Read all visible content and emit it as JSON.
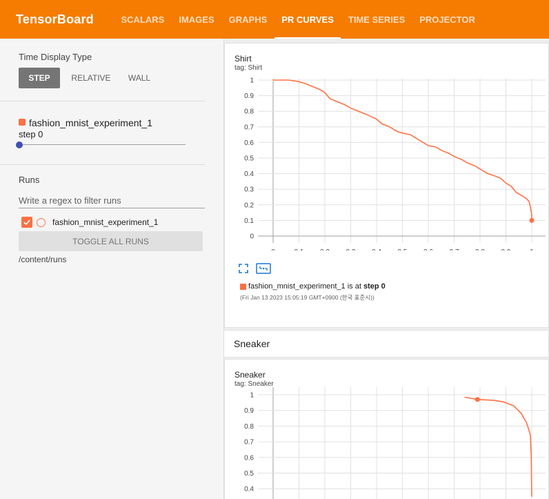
{
  "app": {
    "title": "TensorBoard"
  },
  "tabs": [
    {
      "label": "SCALARS",
      "active": false
    },
    {
      "label": "IMAGES",
      "active": false
    },
    {
      "label": "GRAPHS",
      "active": false
    },
    {
      "label": "PR CURVES",
      "active": true
    },
    {
      "label": "TIME SERIES",
      "active": false
    },
    {
      "label": "PROJECTOR",
      "active": false
    }
  ],
  "sidebar": {
    "time_display_title": "Time Display Type",
    "modes": [
      "STEP",
      "RELATIVE",
      "WALL"
    ],
    "selected_mode": "STEP",
    "run_title": "fashion_mnist_experiment_1",
    "step_label": "step 0",
    "step_value": 0,
    "runs_title": "Runs",
    "filter_placeholder": "Write a regex to filter runs",
    "runs": [
      {
        "name": "fashion_mnist_experiment_1",
        "checked": true
      }
    ],
    "toggle_all_label": "TOGGLE ALL RUNS",
    "logdir": "/content/runs"
  },
  "colors": {
    "accent": "#f57c00",
    "run": "#ff7043",
    "slider": "#3f51b5"
  },
  "main": {
    "cards": [
      {
        "title": "Shirt",
        "tag": "tag: Shirt",
        "legend_run": "fashion_mnist_experiment_1",
        "legend_mid": " is at ",
        "legend_step": "step 0",
        "legend_time": "(Fri Jan 13 2023 15:05:19 GMT+0900 (한국 표준시))"
      },
      {
        "title": "Sneaker",
        "tag": "tag: Sneaker"
      }
    ],
    "group_header": "Sneaker"
  },
  "chart_data": [
    {
      "type": "line",
      "title": "Shirt",
      "xlabel": "",
      "ylabel": "",
      "xlim": [
        0,
        1
      ],
      "ylim": [
        0,
        1
      ],
      "x_ticks": [
        "0",
        "0.1",
        "0.2",
        "0.3",
        "0.4",
        "0.5",
        "0.6",
        "0.7",
        "0.8",
        "0.9",
        "1"
      ],
      "y_ticks": [
        "0",
        "0.1",
        "0.2",
        "0.3",
        "0.4",
        "0.5",
        "0.6",
        "0.7",
        "0.8",
        "0.9",
        "1"
      ],
      "grid": true,
      "series": [
        {
          "name": "fashion_mnist_experiment_1",
          "x": [
            0,
            0.03,
            0.06,
            0.1,
            0.12,
            0.15,
            0.18,
            0.2,
            0.22,
            0.25,
            0.28,
            0.3,
            0.33,
            0.36,
            0.4,
            0.42,
            0.45,
            0.48,
            0.5,
            0.53,
            0.55,
            0.58,
            0.6,
            0.63,
            0.65,
            0.68,
            0.7,
            0.73,
            0.75,
            0.78,
            0.8,
            0.83,
            0.85,
            0.88,
            0.9,
            0.92,
            0.94,
            0.96,
            0.98,
            0.99,
            1.0,
            1.0
          ],
          "y": [
            1.0,
            1.0,
            1.0,
            0.99,
            0.98,
            0.96,
            0.94,
            0.92,
            0.88,
            0.86,
            0.84,
            0.82,
            0.8,
            0.78,
            0.75,
            0.72,
            0.7,
            0.67,
            0.66,
            0.65,
            0.63,
            0.6,
            0.58,
            0.57,
            0.55,
            0.53,
            0.51,
            0.49,
            0.47,
            0.45,
            0.43,
            0.4,
            0.39,
            0.37,
            0.34,
            0.32,
            0.28,
            0.26,
            0.24,
            0.22,
            0.14,
            0.1
          ]
        }
      ],
      "marker": {
        "x": 1.0,
        "y": 0.1
      }
    },
    {
      "type": "line",
      "title": "Sneaker",
      "xlabel": "",
      "ylabel": "",
      "xlim": [
        0,
        1
      ],
      "ylim": [
        0,
        1
      ],
      "y_ticks": [
        "1",
        "0.9",
        "0.8",
        "0.7",
        "0.6",
        "0.5",
        "0.4"
      ],
      "grid": true,
      "series": [
        {
          "name": "fashion_mnist_experiment_1",
          "x": [
            0.74,
            0.79,
            0.85,
            0.89,
            0.93,
            0.96,
            0.98,
            0.99,
            0.995,
            0.998,
            1.0
          ],
          "y": [
            0.985,
            0.97,
            0.965,
            0.955,
            0.93,
            0.88,
            0.82,
            0.77,
            0.74,
            0.6,
            0.35
          ]
        }
      ],
      "marker": {
        "x": 0.79,
        "y": 0.97
      }
    }
  ]
}
